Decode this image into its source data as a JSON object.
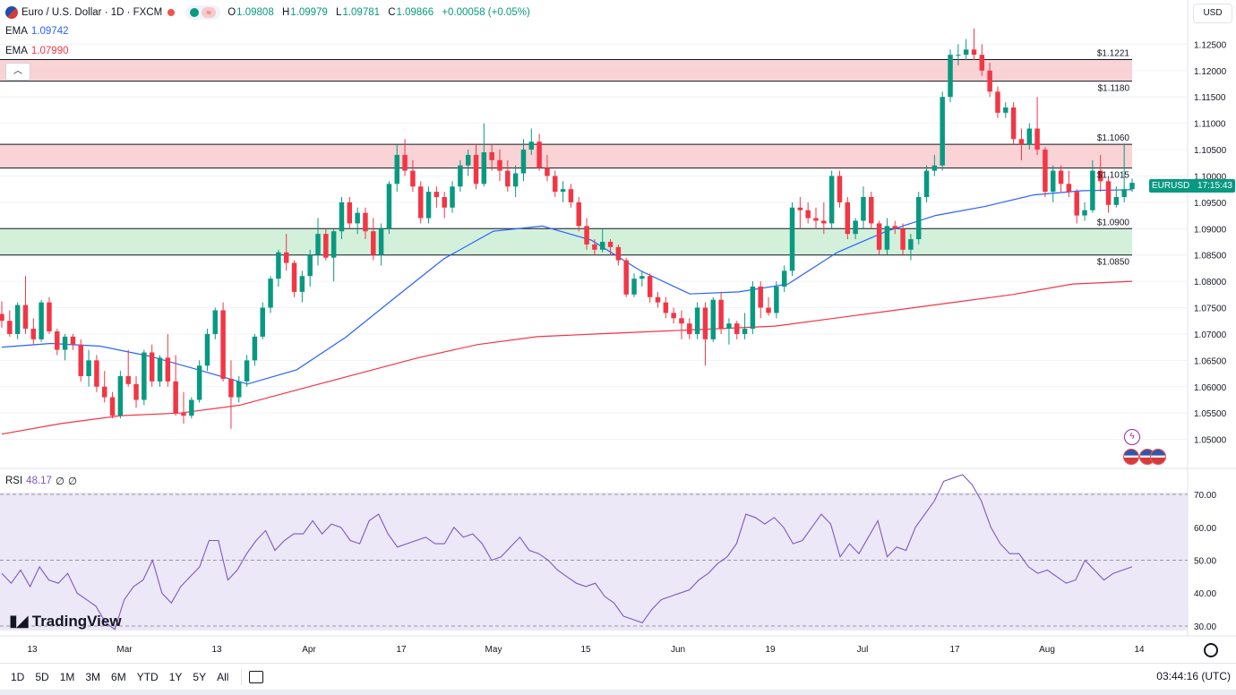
{
  "header": {
    "symbol_title": "Euro / U.S. Dollar · 1D · FXCM",
    "ohlc": {
      "o_label": "O",
      "o": "1.09808",
      "h_label": "H",
      "h": "1.09979",
      "l_label": "L",
      "l": "1.09781",
      "c_label": "C",
      "c": "1.09866",
      "change": "+0.00058 (+0.05%)"
    },
    "currency": "USD"
  },
  "indicators": {
    "ema1_label": "EMA",
    "ema1_value": "1.09742",
    "ema2_label": "EMA",
    "ema2_value": "1.07990",
    "rsi_label": "RSI",
    "rsi_value": "48.17",
    "rsi_extra1": "∅",
    "rsi_extra2": "∅"
  },
  "price_tag": {
    "symbol": "EURUSD",
    "countdown": "17:15:43"
  },
  "toolbar": {
    "timeframes": [
      "1D",
      "5D",
      "1M",
      "3M",
      "6M",
      "YTD",
      "1Y",
      "5Y",
      "All"
    ],
    "clock": "03:44:16 (UTC)"
  },
  "logo": "TradingView",
  "colors": {
    "up": "#089981",
    "down": "#f23645",
    "ema_fast": "#2962ff",
    "ema_slow": "#f23645",
    "rsi": "#7e57c2",
    "resistance_zone": "#f8c8cb",
    "support_zone": "#c8ecd2"
  },
  "chart_data": {
    "type": "candlestick",
    "price_axis": {
      "min": 1.045,
      "max": 1.13,
      "ticks": [
        "1.12500",
        "1.12000",
        "1.11500",
        "1.11000",
        "1.10500",
        "1.10000",
        "1.09500",
        "1.09000",
        "1.08500",
        "1.08000",
        "1.07500",
        "1.07000",
        "1.06500",
        "1.06000",
        "1.05500",
        "1.05000"
      ]
    },
    "time_axis": {
      "labels": [
        "13",
        "Mar",
        "13",
        "Apr",
        "17",
        "May",
        "15",
        "Jun",
        "19",
        "Jul",
        "17",
        "Aug",
        "14"
      ]
    },
    "zones": [
      {
        "kind": "resistance",
        "top": 1.1221,
        "bottom": 1.118,
        "top_label": "$1.1221",
        "bottom_label": "$1.1180"
      },
      {
        "kind": "resistance",
        "top": 1.106,
        "bottom": 1.1015,
        "top_label": "$1.1060",
        "bottom_label": "$1.1015"
      },
      {
        "kind": "support",
        "top": 1.09,
        "bottom": 1.085,
        "top_label": "$1.0900",
        "bottom_label": "$1.0850"
      }
    ],
    "candles": [
      [
        1.0738,
        1.0762,
        1.0712,
        1.0725
      ],
      [
        1.0725,
        1.0745,
        1.0695,
        1.07
      ],
      [
        1.07,
        1.076,
        1.069,
        1.0755
      ],
      [
        1.0755,
        1.081,
        1.07,
        1.071
      ],
      [
        1.071,
        1.073,
        1.068,
        1.069
      ],
      [
        1.069,
        1.0765,
        1.0685,
        1.076
      ],
      [
        1.076,
        1.077,
        1.07,
        1.0705
      ],
      [
        1.0705,
        1.071,
        1.066,
        1.067
      ],
      [
        1.067,
        1.07,
        1.065,
        1.0695
      ],
      [
        1.0695,
        1.07,
        1.067,
        1.068
      ],
      [
        1.068,
        1.069,
        1.061,
        1.062
      ],
      [
        1.062,
        1.067,
        1.06,
        1.065
      ],
      [
        1.065,
        1.066,
        1.059,
        1.06
      ],
      [
        1.06,
        1.063,
        1.057,
        1.058
      ],
      [
        1.058,
        1.059,
        1.054,
        1.0545
      ],
      [
        1.0545,
        1.063,
        1.054,
        1.062
      ],
      [
        1.062,
        1.067,
        1.06,
        1.0605
      ],
      [
        1.0605,
        1.062,
        1.056,
        1.0575
      ],
      [
        1.0575,
        1.067,
        1.0565,
        1.0665
      ],
      [
        1.0665,
        1.068,
        1.06,
        1.061
      ],
      [
        1.061,
        1.066,
        1.06,
        1.0655
      ],
      [
        1.0655,
        1.07,
        1.06,
        1.061
      ],
      [
        1.061,
        1.066,
        1.0545,
        1.055
      ],
      [
        1.055,
        1.059,
        1.053,
        1.0545
      ],
      [
        1.0545,
        1.058,
        1.054,
        1.0575
      ],
      [
        1.0575,
        1.065,
        1.057,
        1.064
      ],
      [
        1.064,
        1.071,
        1.063,
        1.07
      ],
      [
        1.07,
        1.075,
        1.069,
        1.0745
      ],
      [
        1.0745,
        1.076,
        1.061,
        1.0615
      ],
      [
        1.0615,
        1.065,
        1.052,
        1.058
      ],
      [
        1.058,
        1.062,
        1.057,
        1.061
      ],
      [
        1.061,
        1.066,
        1.06,
        1.065
      ],
      [
        1.065,
        1.07,
        1.064,
        1.0695
      ],
      [
        1.0695,
        1.076,
        1.069,
        1.075
      ],
      [
        1.075,
        1.081,
        1.074,
        1.0805
      ],
      [
        1.0805,
        1.086,
        1.079,
        1.0855
      ],
      [
        1.0855,
        1.089,
        1.082,
        1.0835
      ],
      [
        1.0835,
        1.084,
        1.077,
        1.078
      ],
      [
        1.078,
        1.082,
        1.076,
        1.081
      ],
      [
        1.081,
        1.086,
        1.079,
        1.085
      ],
      [
        1.085,
        1.092,
        1.083,
        1.089
      ],
      [
        1.089,
        1.09,
        1.084,
        1.0845
      ],
      [
        1.0845,
        1.09,
        1.08,
        1.0895
      ],
      [
        1.0895,
        1.096,
        1.088,
        1.095
      ],
      [
        1.095,
        1.096,
        1.09,
        1.091
      ],
      [
        1.091,
        1.094,
        1.089,
        1.093
      ],
      [
        1.093,
        1.094,
        1.088,
        1.0895
      ],
      [
        1.0895,
        1.092,
        1.084,
        1.085
      ],
      [
        1.085,
        1.091,
        1.083,
        1.09
      ],
      [
        1.09,
        1.099,
        1.089,
        1.0985
      ],
      [
        1.0985,
        1.106,
        1.097,
        1.104
      ],
      [
        1.104,
        1.107,
        1.1,
        1.101
      ],
      [
        1.101,
        1.103,
        1.097,
        1.098
      ],
      [
        1.098,
        1.099,
        1.091,
        1.092
      ],
      [
        1.092,
        1.098,
        1.091,
        1.097
      ],
      [
        1.097,
        1.098,
        1.094,
        1.096
      ],
      [
        1.096,
        1.097,
        1.092,
        1.094
      ],
      [
        1.094,
        1.099,
        1.093,
        1.098
      ],
      [
        1.098,
        1.103,
        1.097,
        1.102
      ],
      [
        1.102,
        1.105,
        1.1,
        1.104
      ],
      [
        1.104,
        1.106,
        1.0975,
        1.0985
      ],
      [
        1.0985,
        1.11,
        1.098,
        1.1045
      ],
      [
        1.1045,
        1.106,
        1.101,
        1.103
      ],
      [
        1.103,
        1.105,
        1.099,
        1.101
      ],
      [
        1.101,
        1.103,
        1.097,
        1.098
      ],
      [
        1.098,
        1.102,
        1.096,
        1.1005
      ],
      [
        1.1005,
        1.107,
        1.099,
        1.105
      ],
      [
        1.105,
        1.109,
        1.104,
        1.1065
      ],
      [
        1.1065,
        1.108,
        1.101,
        1.1015
      ],
      [
        1.1015,
        1.104,
        1.099,
        1.1
      ],
      [
        1.1,
        1.101,
        1.096,
        1.097
      ],
      [
        1.097,
        1.099,
        1.095,
        1.0975
      ],
      [
        1.0975,
        1.0985,
        1.094,
        1.095
      ],
      [
        1.095,
        1.096,
        1.0895,
        1.0905
      ],
      [
        1.0905,
        1.092,
        1.086,
        1.087
      ],
      [
        1.087,
        1.088,
        1.085,
        1.086
      ],
      [
        1.086,
        1.09,
        1.0855,
        1.0875
      ],
      [
        1.0875,
        1.088,
        1.085,
        1.0865
      ],
      [
        1.0865,
        1.087,
        1.083,
        1.084
      ],
      [
        1.084,
        1.0845,
        1.077,
        1.0775
      ],
      [
        1.0775,
        1.0815,
        1.077,
        1.0805
      ],
      [
        1.0805,
        1.082,
        1.079,
        1.081
      ],
      [
        1.081,
        1.0815,
        1.076,
        1.077
      ],
      [
        1.077,
        1.078,
        1.075,
        1.076
      ],
      [
        1.076,
        1.077,
        1.073,
        1.074
      ],
      [
        1.074,
        1.075,
        1.072,
        1.073
      ],
      [
        1.073,
        1.0745,
        1.069,
        1.072
      ],
      [
        1.072,
        1.073,
        1.069,
        1.07
      ],
      [
        1.07,
        1.076,
        1.069,
        1.075
      ],
      [
        1.075,
        1.076,
        1.064,
        1.069
      ],
      [
        1.069,
        1.077,
        1.0685,
        1.0765
      ],
      [
        1.0765,
        1.078,
        1.07,
        1.071
      ],
      [
        1.071,
        1.073,
        1.068,
        1.072
      ],
      [
        1.072,
        1.0725,
        1.069,
        1.07
      ],
      [
        1.07,
        1.074,
        1.069,
        1.071
      ],
      [
        1.071,
        1.08,
        1.07,
        1.079
      ],
      [
        1.079,
        1.08,
        1.073,
        1.075
      ],
      [
        1.075,
        1.077,
        1.0735,
        1.074
      ],
      [
        1.074,
        1.08,
        1.073,
        1.079
      ],
      [
        1.079,
        1.083,
        1.078,
        1.082
      ],
      [
        1.082,
        1.095,
        1.081,
        1.094
      ],
      [
        1.094,
        1.096,
        1.09,
        1.0935
      ],
      [
        1.0935,
        1.095,
        1.091,
        1.092
      ],
      [
        1.092,
        1.094,
        1.09,
        1.0915
      ],
      [
        1.0915,
        1.095,
        1.089,
        1.091
      ],
      [
        1.091,
        1.101,
        1.09,
        1.1
      ],
      [
        1.1,
        1.101,
        1.094,
        1.095
      ],
      [
        1.095,
        1.096,
        1.088,
        1.089
      ],
      [
        1.089,
        1.092,
        1.088,
        1.0915
      ],
      [
        1.0915,
        1.098,
        1.09,
        1.096
      ],
      [
        1.096,
        1.097,
        1.09,
        1.091
      ],
      [
        1.091,
        1.0915,
        1.085,
        1.086
      ],
      [
        1.086,
        1.092,
        1.085,
        1.0905
      ],
      [
        1.0905,
        1.0915,
        1.089,
        1.09
      ],
      [
        1.09,
        1.091,
        1.085,
        1.086
      ],
      [
        1.086,
        1.089,
        1.084,
        1.088
      ],
      [
        1.088,
        1.097,
        1.087,
        1.096
      ],
      [
        1.096,
        1.102,
        1.095,
        1.101
      ],
      [
        1.101,
        1.104,
        1.1,
        1.102
      ],
      [
        1.102,
        1.116,
        1.101,
        1.115
      ],
      [
        1.115,
        1.124,
        1.114,
        1.123
      ],
      [
        1.123,
        1.125,
        1.121,
        1.123
      ],
      [
        1.123,
        1.126,
        1.122,
        1.124
      ],
      [
        1.124,
        1.128,
        1.122,
        1.123
      ],
      [
        1.123,
        1.125,
        1.119,
        1.12
      ],
      [
        1.12,
        1.1215,
        1.115,
        1.116
      ],
      [
        1.116,
        1.117,
        1.111,
        1.112
      ],
      [
        1.112,
        1.114,
        1.111,
        1.113
      ],
      [
        1.113,
        1.114,
        1.106,
        1.107
      ],
      [
        1.107,
        1.109,
        1.103,
        1.106
      ],
      [
        1.106,
        1.11,
        1.105,
        1.109
      ],
      [
        1.109,
        1.115,
        1.104,
        1.105
      ],
      [
        1.105,
        1.1055,
        1.096,
        1.097
      ],
      [
        1.097,
        1.102,
        1.095,
        1.101
      ],
      [
        1.101,
        1.102,
        1.097,
        1.0985
      ],
      [
        1.0985,
        1.101,
        1.096,
        1.097
      ],
      [
        1.097,
        1.0975,
        1.091,
        1.0925
      ],
      [
        1.0925,
        1.095,
        1.0915,
        1.0935
      ],
      [
        1.0935,
        1.103,
        1.093,
        1.101
      ],
      [
        1.101,
        1.104,
        1.097,
        1.099
      ],
      [
        1.099,
        1.1,
        1.093,
        1.0945
      ],
      [
        1.0945,
        1.098,
        1.094,
        1.096
      ],
      [
        1.096,
        1.106,
        1.095,
        1.0975
      ],
      [
        1.0975,
        1.0995,
        1.097,
        1.0987
      ]
    ],
    "ema_fast": [
      1.0675,
      1.0682,
      1.0677,
      1.0658,
      1.0632,
      1.0605,
      1.0632,
      1.0694,
      1.0769,
      1.0843,
      1.0895,
      1.0905,
      1.0878,
      1.082,
      1.0776,
      1.078,
      1.0795,
      1.0855,
      1.0895,
      1.0925,
      1.0942,
      1.0964,
      1.0972,
      1.0974
    ],
    "ema_slow": [
      1.051,
      1.053,
      1.0545,
      1.055,
      1.0565,
      1.0595,
      1.0625,
      1.0655,
      1.068,
      1.0695,
      1.07,
      1.0705,
      1.071,
      1.0715,
      1.073,
      1.0745,
      1.076,
      1.0775,
      1.0795,
      1.08
    ],
    "rsi": {
      "axis": {
        "min": 27,
        "max": 76,
        "ticks": [
          "70.00",
          "60.00",
          "50.00",
          "40.00",
          "30.00"
        ]
      },
      "overbought": 70,
      "midline": 50,
      "oversold": 30,
      "values": [
        46,
        43,
        47,
        42,
        48,
        44,
        43,
        46,
        40,
        38,
        36,
        31,
        29,
        38,
        42,
        44,
        50,
        40,
        37,
        42,
        45,
        48,
        56,
        56,
        44,
        47,
        52,
        56,
        59,
        53,
        56,
        58,
        58,
        62,
        58,
        61,
        60,
        56,
        55,
        62,
        64,
        58,
        54,
        55,
        56,
        57,
        55,
        55,
        60,
        57,
        58,
        55,
        50,
        51,
        54,
        57,
        53,
        52,
        50,
        47,
        45,
        43,
        42,
        43,
        39,
        37,
        33,
        32,
        31,
        35,
        38,
        39,
        40,
        41,
        44,
        46,
        49,
        51,
        55,
        64,
        63,
        61,
        63,
        60,
        55,
        56,
        60,
        64,
        61,
        51,
        55,
        52,
        57,
        62,
        51,
        54,
        53,
        60,
        64,
        68,
        74,
        75,
        76,
        73,
        68,
        60,
        55,
        52,
        52,
        48,
        46,
        47,
        45,
        43,
        44,
        50,
        47,
        44,
        46,
        47,
        48
      ]
    }
  }
}
